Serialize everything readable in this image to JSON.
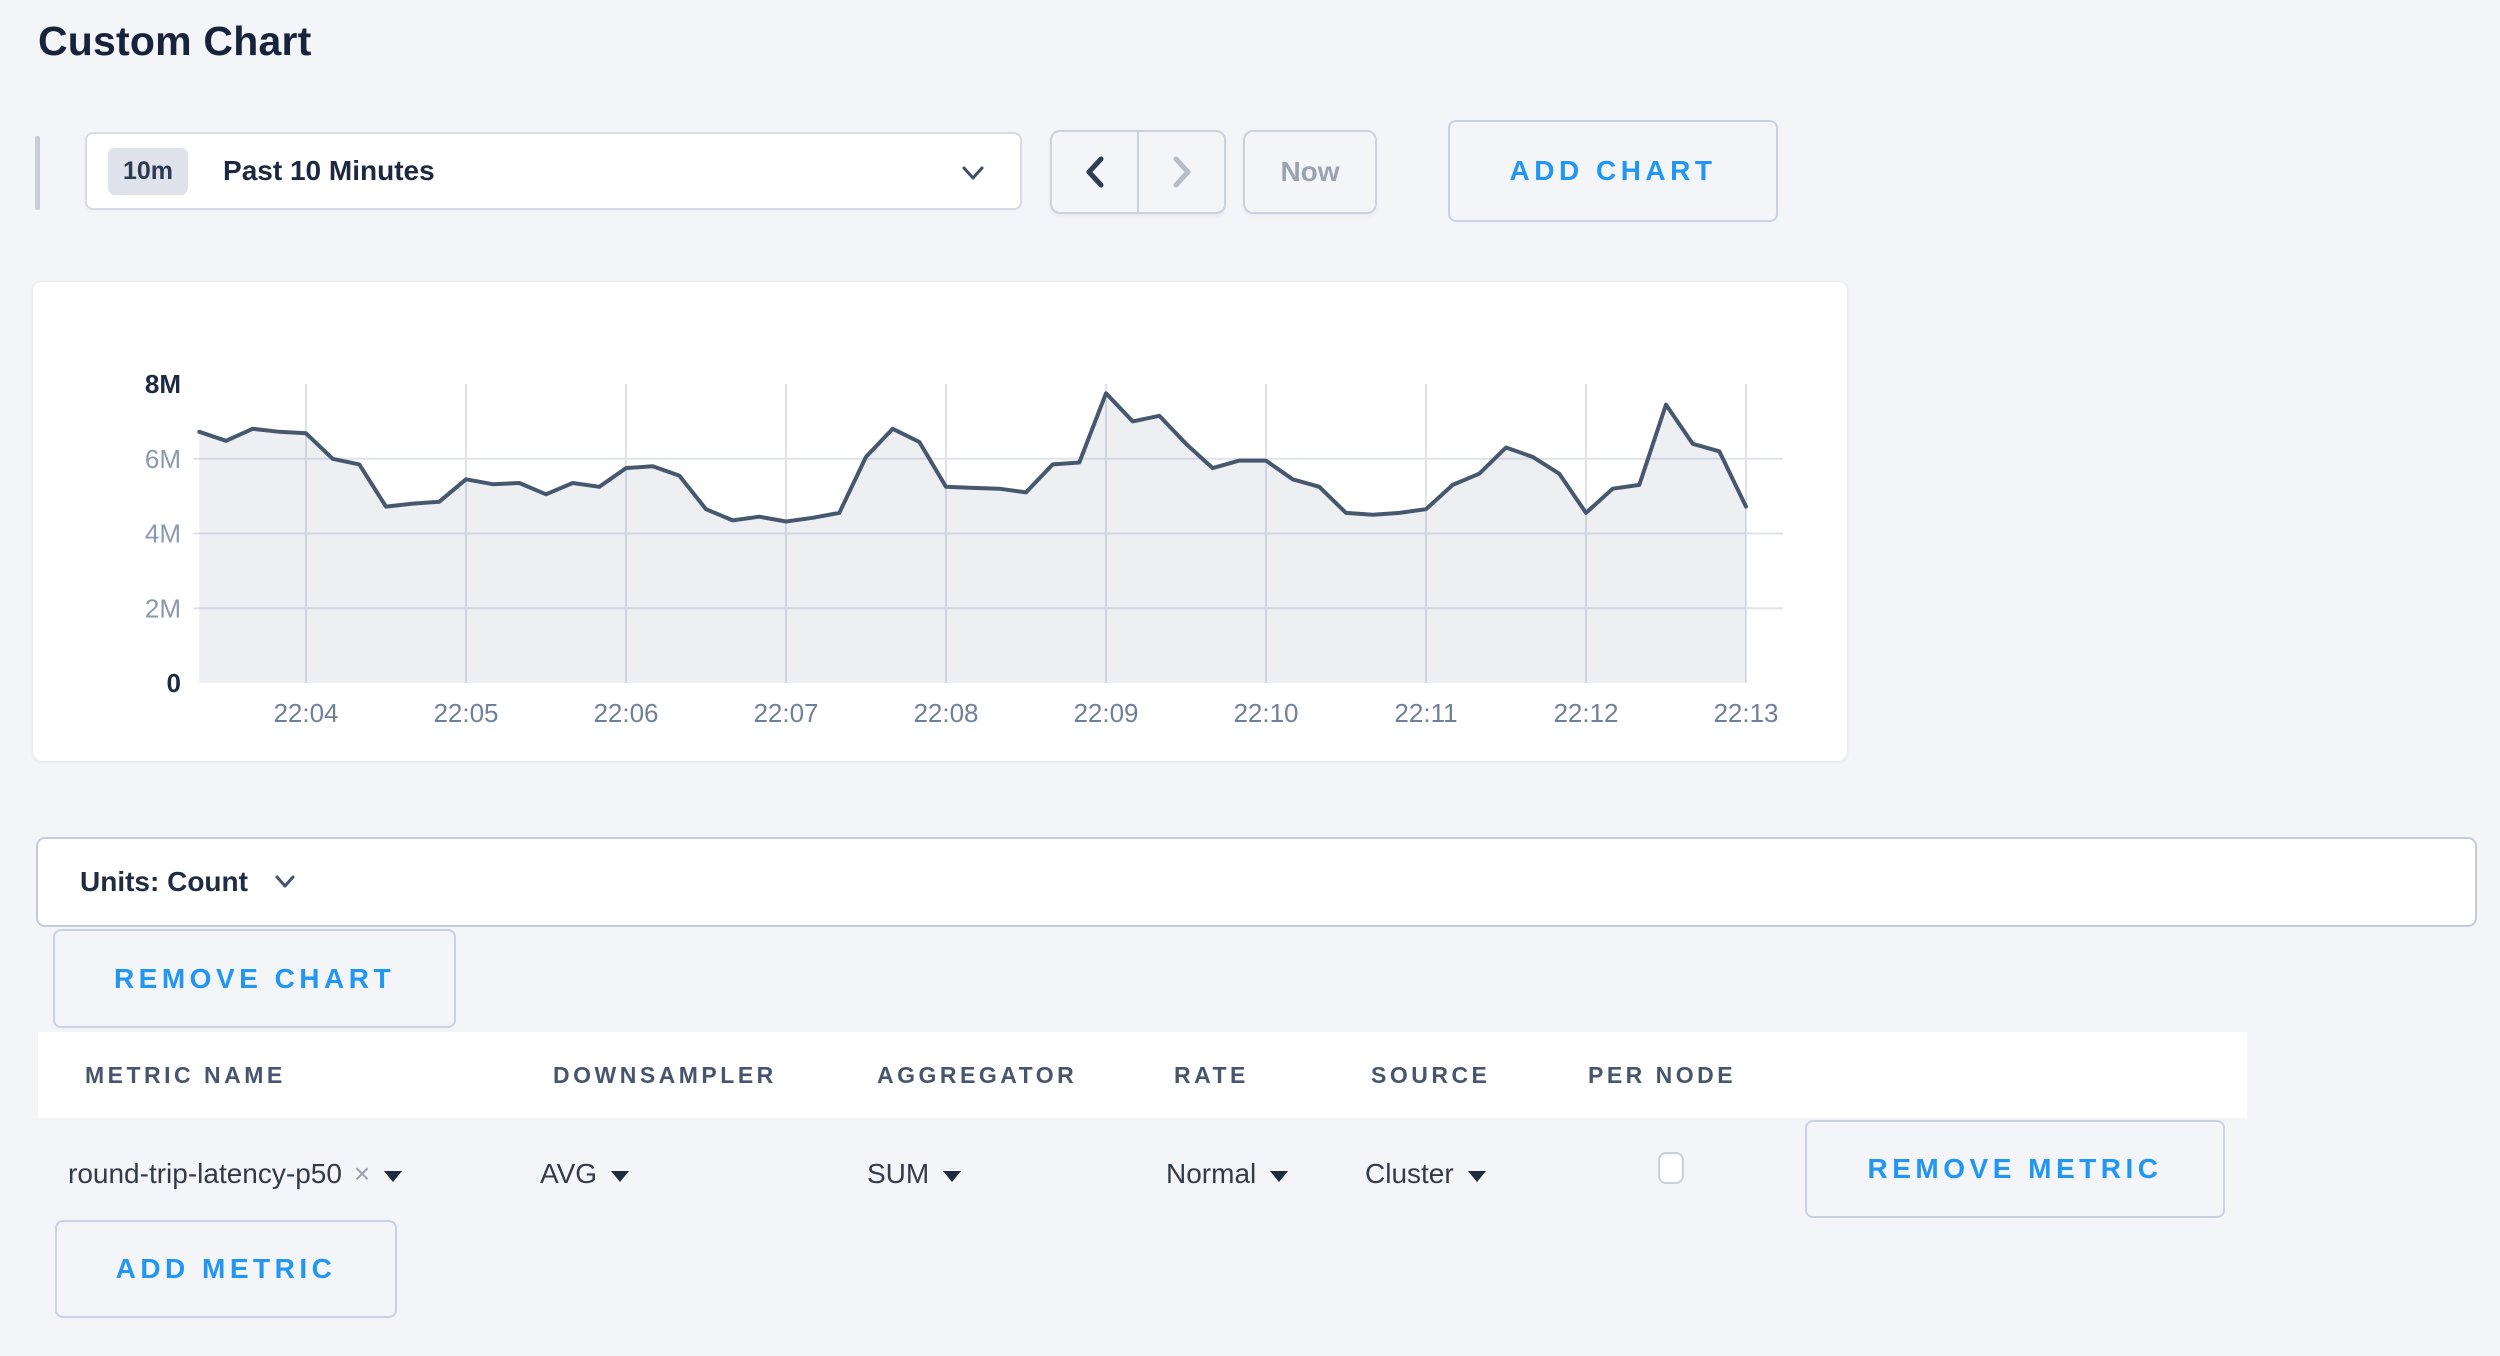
{
  "page": {
    "title": "Custom Chart",
    "background_color": "#f4f5f8",
    "accent_blue": "#2196f3"
  },
  "toolbar": {
    "time_range_badge": "10m",
    "time_range_label": "Past 10 Minutes",
    "now_label": "Now",
    "add_chart_label": "ADD CHART"
  },
  "units_bar": {
    "label": "Units: Count"
  },
  "remove_chart_label": "REMOVE CHART",
  "chart_data": {
    "type": "area",
    "title": "",
    "series_name": "round-trip-latency-p50",
    "ylabel": "",
    "xlabel": "",
    "ylim": [
      0,
      8000000
    ],
    "y_ticks": [
      {
        "value": 0,
        "label": "0",
        "emphasis": true
      },
      {
        "value": 2,
        "label": "2M",
        "emphasis": false
      },
      {
        "value": 4,
        "label": "4M",
        "emphasis": false
      },
      {
        "value": 6,
        "label": "6M",
        "emphasis": false
      },
      {
        "value": 8,
        "label": "8M",
        "emphasis": true
      }
    ],
    "x_tick_labels": [
      "22:04",
      "22:05",
      "22:06",
      "22:07",
      "22:08",
      "22:09",
      "22:10",
      "22:11",
      "22:12",
      "22:13"
    ],
    "x_start_time": "22:03:20",
    "x_step_seconds": 10,
    "grid": true,
    "legend": false,
    "line_color": "#47586e",
    "fill_color": "rgba(90,110,145,0.11)",
    "values_in_millions": [
      6.72,
      6.48,
      6.8,
      6.72,
      6.68,
      6.0,
      5.85,
      4.72,
      4.8,
      4.85,
      5.45,
      5.32,
      5.35,
      5.05,
      5.35,
      5.25,
      5.75,
      5.8,
      5.55,
      4.65,
      4.35,
      4.45,
      4.32,
      4.42,
      4.55,
      6.05,
      6.8,
      6.45,
      5.25,
      5.22,
      5.2,
      5.1,
      5.85,
      5.9,
      7.75,
      7.0,
      7.15,
      6.4,
      5.75,
      5.95,
      5.95,
      5.45,
      5.25,
      4.55,
      4.5,
      4.55,
      4.65,
      5.3,
      5.6,
      6.3,
      6.05,
      5.6,
      4.55,
      5.2,
      5.3,
      7.45,
      6.4,
      6.2,
      4.72
    ]
  },
  "metrics_table": {
    "columns": [
      "METRIC NAME",
      "DOWNSAMPLER",
      "AGGREGATOR",
      "RATE",
      "SOURCE",
      "PER NODE"
    ],
    "row": {
      "metric_name": "round-trip-latency-p50",
      "remove_tag_icon": "×",
      "downsampler": "AVG",
      "aggregator": "SUM",
      "rate": "Normal",
      "source": "Cluster",
      "per_node_checked": false,
      "remove_label": "REMOVE METRIC"
    },
    "add_metric_label": "ADD METRIC"
  }
}
